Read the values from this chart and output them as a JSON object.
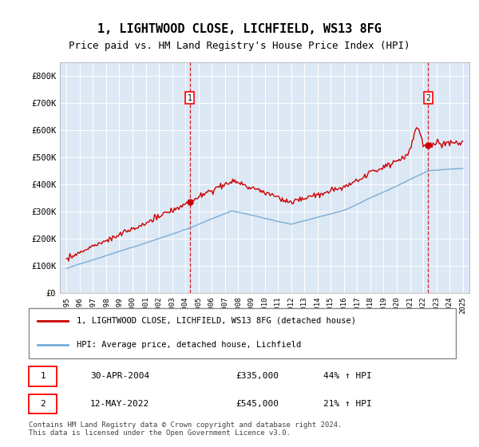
{
  "title": "1, LIGHTWOOD CLOSE, LICHFIELD, WS13 8FG",
  "subtitle": "Price paid vs. HM Land Registry's House Price Index (HPI)",
  "property_label": "1, LIGHTWOOD CLOSE, LICHFIELD, WS13 8FG (detached house)",
  "hpi_label": "HPI: Average price, detached house, Lichfield",
  "legend_entry1_date": "30-APR-2004",
  "legend_entry1_price": "£335,000",
  "legend_entry1_hpi": "44% ↑ HPI",
  "legend_entry2_date": "12-MAY-2022",
  "legend_entry2_price": "£545,000",
  "legend_entry2_hpi": "21% ↑ HPI",
  "footer": "Contains HM Land Registry data © Crown copyright and database right 2024.\nThis data is licensed under the Open Government Licence v3.0.",
  "property_color": "#cc0000",
  "hpi_color": "#7aaed6",
  "background_color": "#ddeeff",
  "plot_bg_color": "#dde8f5",
  "ylim": [
    0,
    850000
  ],
  "yticks": [
    0,
    100000,
    200000,
    300000,
    400000,
    500000,
    600000,
    700000,
    800000
  ],
  "sale1_year": 2004.33,
  "sale1_price": 335000,
  "sale2_year": 2022.37,
  "sale2_price": 545000,
  "xmin": 1994.5,
  "xmax": 2025.5
}
